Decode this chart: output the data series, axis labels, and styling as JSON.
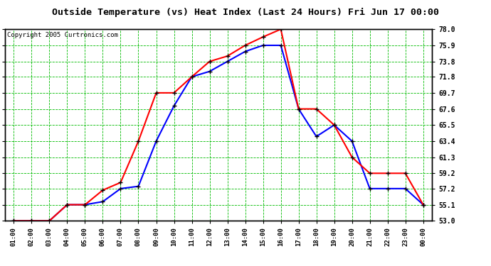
{
  "title": "Outside Temperature (vs) Heat Index (Last 24 Hours) Fri Jun 17 00:00",
  "copyright": "Copyright 2005 Curtronics.com",
  "x_labels": [
    "01:00",
    "02:00",
    "03:00",
    "04:00",
    "05:00",
    "06:00",
    "07:00",
    "08:00",
    "09:00",
    "10:00",
    "11:00",
    "12:00",
    "13:00",
    "14:00",
    "15:00",
    "16:00",
    "17:00",
    "18:00",
    "19:00",
    "20:00",
    "21:00",
    "22:00",
    "23:00",
    "00:00"
  ],
  "y_ticks": [
    53.0,
    55.1,
    57.2,
    59.2,
    61.3,
    63.4,
    65.5,
    67.6,
    69.7,
    71.8,
    73.8,
    75.9,
    78.0
  ],
  "y_min": 53.0,
  "y_max": 78.0,
  "outside_temp": [
    53.0,
    53.0,
    53.0,
    55.1,
    55.1,
    55.5,
    57.2,
    57.5,
    63.4,
    68.0,
    71.8,
    72.5,
    73.8,
    75.1,
    75.9,
    75.9,
    67.6,
    64.0,
    65.5,
    63.4,
    57.2,
    57.2,
    57.2,
    55.1
  ],
  "heat_index": [
    53.0,
    53.0,
    53.0,
    55.1,
    55.1,
    57.0,
    58.0,
    63.4,
    69.7,
    69.7,
    71.8,
    73.8,
    74.5,
    75.9,
    77.0,
    78.0,
    67.6,
    67.6,
    65.5,
    61.3,
    59.2,
    59.2,
    59.2,
    55.1
  ],
  "temp_color": "#0000ff",
  "heat_color": "#ff0000",
  "marker_color": "#000000",
  "bg_color": "#ffffff",
  "plot_bg_color": "#ffffff",
  "grid_color": "#00bb00",
  "border_color": "#000000",
  "title_color": "#000000",
  "copyright_color": "#000000"
}
